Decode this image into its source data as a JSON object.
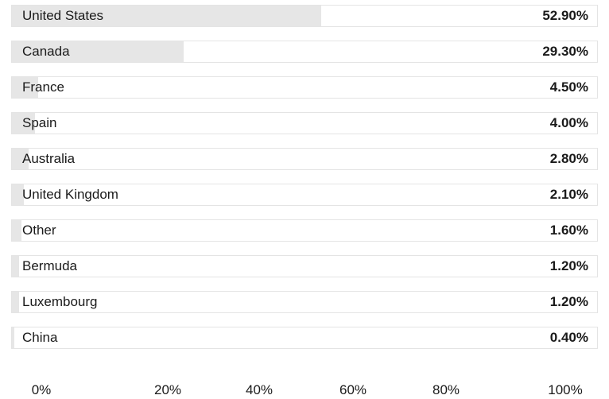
{
  "chart_data": {
    "type": "bar",
    "orientation": "horizontal",
    "categories": [
      "United States",
      "Canada",
      "France",
      "Spain",
      "Australia",
      "United Kingdom",
      "Other",
      "Bermuda",
      "Luxembourg",
      "China"
    ],
    "values": [
      52.9,
      29.3,
      4.5,
      4.0,
      2.8,
      2.1,
      1.6,
      1.2,
      1.2,
      0.4
    ],
    "value_labels": [
      "52.90%",
      "29.30%",
      "4.50%",
      "4.00%",
      "2.80%",
      "2.10%",
      "1.60%",
      "1.20%",
      "1.20%",
      "0.40%"
    ],
    "xlim": [
      0,
      100
    ],
    "x_ticks": [
      "0%",
      "20%",
      "40%",
      "60%",
      "80%",
      "100%"
    ],
    "title": "",
    "xlabel": "",
    "ylabel": "",
    "grid": false,
    "legend": "none",
    "colors": {
      "bar_fill": "#e6e6e6",
      "row_border": "#e4e4e4",
      "background": "#ffffff",
      "text": "#1a1a1a"
    }
  }
}
